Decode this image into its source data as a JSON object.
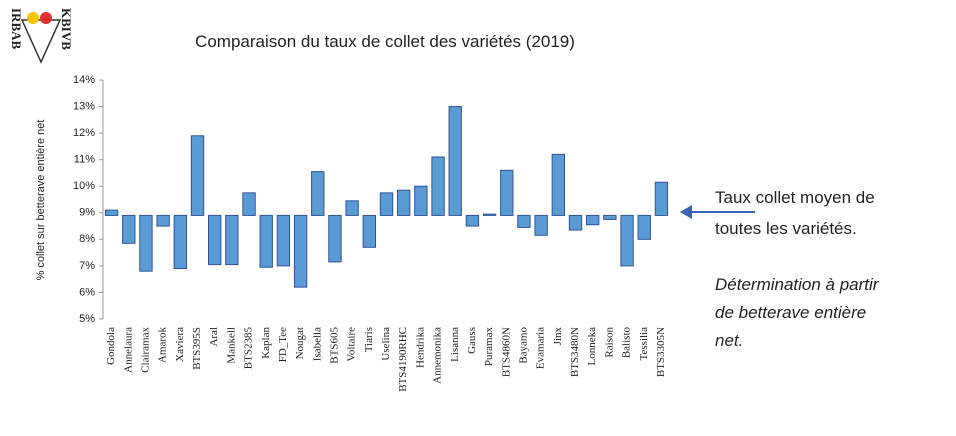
{
  "logo": {
    "left": "IRBAB",
    "right": "KBIVB"
  },
  "annotations": {
    "mean_line": [
      "Taux collet moyen de",
      "toutes les variétés."
    ],
    "note": [
      "Détermination à partir",
      "de betterave entière",
      "net."
    ]
  },
  "chart_data": {
    "type": "bar",
    "title": "Comparaison du taux de collet des variétés (2019)",
    "y_label": "% collet sur betterave entière net",
    "categories": [
      "Gondola",
      "Annelaura",
      "Clairamax",
      "Amarok",
      "Xaviera",
      "BTS395S",
      "Aral",
      "Mankell",
      "BTS2385",
      "Kaplan",
      "FD_Tee",
      "Nougat",
      "Isabella",
      "BTS605",
      "Voltaire",
      "Tiaris",
      "Uselina",
      "BTS4190RHC",
      "Hendrika",
      "Annemonika",
      "Lisanna",
      "Gauss",
      "Puramax",
      "BTS4860N",
      "Bayamo",
      "Evamaria",
      "Jinx",
      "BTS3480N",
      "Lonneka",
      "Raison",
      "Balisto",
      "Tessilia",
      "BTS3305N"
    ],
    "values": [
      9.1,
      7.85,
      6.8,
      8.5,
      6.9,
      11.9,
      7.05,
      7.05,
      9.75,
      6.95,
      7.0,
      6.2,
      10.55,
      7.15,
      9.45,
      7.7,
      9.75,
      9.85,
      10.0,
      11.1,
      13.0,
      8.5,
      8.95,
      10.6,
      8.45,
      8.15,
      11.2,
      8.35,
      8.55,
      8.75,
      7.0,
      8.0,
      10.15
    ],
    "baseline": 8.9,
    "color": "#5b9bd5",
    "ylim": [
      5,
      14
    ],
    "yticks": [
      {
        "value": 5,
        "label": "5%"
      },
      {
        "value": 6,
        "label": "6%"
      },
      {
        "value": 7,
        "label": "7%"
      },
      {
        "value": 8,
        "label": "8%"
      },
      {
        "value": 9,
        "label": "9%"
      },
      {
        "value": 10,
        "label": "10%"
      },
      {
        "value": 11,
        "label": "11%"
      },
      {
        "value": 12,
        "label": "12%"
      },
      {
        "value": 13,
        "label": "13%"
      },
      {
        "value": 14,
        "label": "14%"
      }
    ],
    "grid": false
  }
}
